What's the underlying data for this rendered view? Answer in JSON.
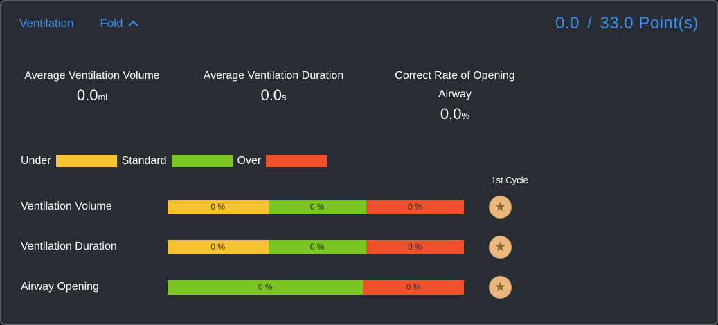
{
  "header": {
    "title": "Ventilation",
    "fold_label": "Fold",
    "score_current": "0.0",
    "score_separator": "/",
    "score_total": "33.0",
    "score_unit": "Point(s)"
  },
  "stats": [
    {
      "label": "Average Ventilation Volume",
      "value": "0.0",
      "unit": "ml"
    },
    {
      "label": "Average Ventilation Duration",
      "value": "0.0",
      "unit": "s"
    },
    {
      "label": "Correct Rate of Opening Airway",
      "value": "0.0",
      "unit": "%"
    }
  ],
  "legend": [
    {
      "label": "Under",
      "color": "#f5c332"
    },
    {
      "label": "Standard",
      "color": "#7cc623"
    },
    {
      "label": "Over",
      "color": "#f1502f"
    }
  ],
  "cycle_header": "1st Cycle",
  "icons": {
    "star": "★"
  },
  "colors": {
    "accent_blue": "#3d8df5",
    "under": "#f5c332",
    "standard": "#7cc623",
    "over": "#f1502f",
    "badge": "#eab87e",
    "panel_background": "#282c33"
  },
  "chart_data": {
    "type": "bar",
    "legend_position": "top-left",
    "categories": [
      "Under",
      "Standard",
      "Over"
    ],
    "rows": [
      {
        "label": "Ventilation Volume",
        "badge": "star",
        "segments": [
          {
            "category": "Under",
            "label": "0 %",
            "value": 0,
            "width_pct": 34,
            "color": "#f5c332"
          },
          {
            "category": "Standard",
            "label": "0 %",
            "value": 0,
            "width_pct": 33,
            "color": "#7cc623"
          },
          {
            "category": "Over",
            "label": "0 %",
            "value": 0,
            "width_pct": 33,
            "color": "#f1502f"
          }
        ]
      },
      {
        "label": "Ventilation Duration",
        "badge": "star",
        "segments": [
          {
            "category": "Under",
            "label": "0 %",
            "value": 0,
            "width_pct": 34,
            "color": "#f5c332"
          },
          {
            "category": "Standard",
            "label": "0 %",
            "value": 0,
            "width_pct": 33,
            "color": "#7cc623"
          },
          {
            "category": "Over",
            "label": "0 %",
            "value": 0,
            "width_pct": 33,
            "color": "#f1502f"
          }
        ]
      },
      {
        "label": "Airway Opening",
        "badge": "star",
        "segments": [
          {
            "category": "Standard",
            "label": "0 %",
            "value": 0,
            "width_pct": 66,
            "color": "#7cc623"
          },
          {
            "category": "Over",
            "label": "0 %",
            "value": 0,
            "width_pct": 34,
            "color": "#f1502f"
          }
        ]
      }
    ]
  }
}
